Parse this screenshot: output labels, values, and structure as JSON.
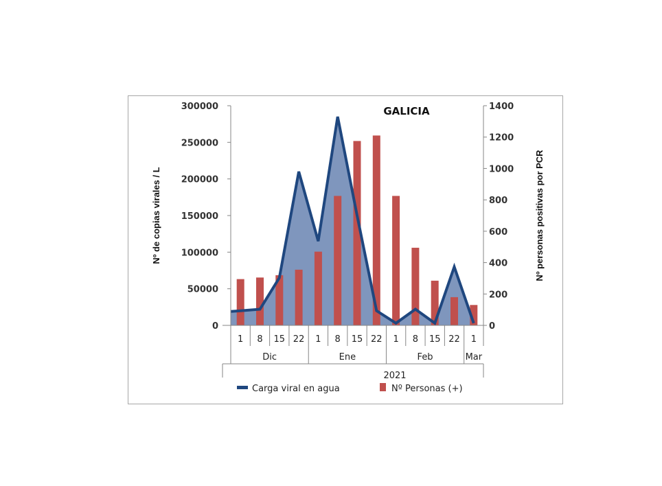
{
  "chart_data": {
    "type": "bar+area",
    "title": "GALICIA",
    "ylabel_left": "Nº de copias virales / L",
    "ylabel_right": "Nº personas positivas por PCR",
    "ylim_left": [
      0,
      300000
    ],
    "ylim_right": [
      0,
      1400
    ],
    "yticks_left": [
      "0",
      "50000",
      "100000",
      "150000",
      "200000",
      "250000",
      "300000"
    ],
    "yticks_right": [
      "0",
      "200",
      "400",
      "600",
      "800",
      "1000",
      "1200",
      "1400"
    ],
    "categories": [
      "1",
      "8",
      "15",
      "22",
      "1",
      "8",
      "15",
      "22",
      "1",
      "8",
      "15",
      "22",
      "1"
    ],
    "months": [
      {
        "label": "Dic",
        "start": 0,
        "end": 3
      },
      {
        "label": "Ene",
        "start": 4,
        "end": 7
      },
      {
        "label": "Feb",
        "start": 8,
        "end": 11
      },
      {
        "label": "Mar",
        "start": 12,
        "end": 12
      }
    ],
    "year": "2021",
    "x_start_stub": "",
    "series": [
      {
        "name": "Carga viral en agua",
        "type": "area",
        "axis": "left",
        "values": [
          20000,
          22000,
          65000,
          210000,
          115000,
          285000,
          150000,
          20000,
          3000,
          22000,
          3000,
          80000,
          3000
        ],
        "line_start": 19000
      },
      {
        "name": "Nº Personas (+)",
        "type": "bar",
        "axis": "right",
        "values": [
          295,
          305,
          320,
          355,
          470,
          825,
          1175,
          1210,
          825,
          495,
          285,
          180,
          130
        ]
      }
    ],
    "colors": {
      "area_fill": "#7f96bd",
      "area_line": "#1f477f",
      "bar": "#c0504d",
      "axis": "#868686"
    },
    "legend_position": "bottom",
    "grid": false
  }
}
